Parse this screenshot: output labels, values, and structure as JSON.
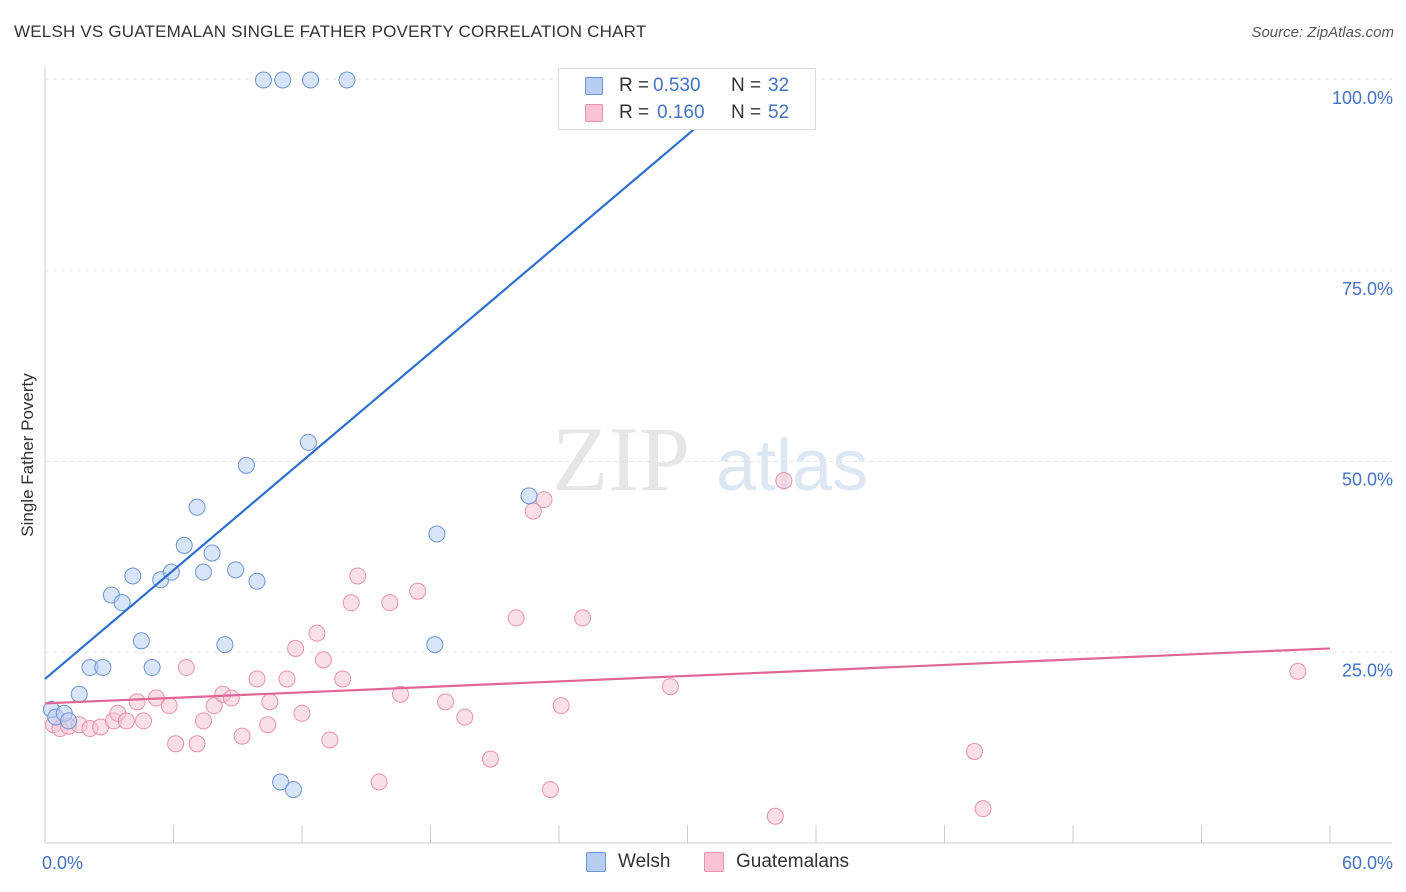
{
  "title": "WELSH VS GUATEMALAN SINGLE FATHER POVERTY CORRELATION CHART",
  "source": "Source: ZipAtlas.com",
  "watermark": {
    "part1": "ZIP",
    "part2": "atlas"
  },
  "legend_top": [
    {
      "r_label": "R =",
      "r_value": "0.530",
      "n_label": "N =",
      "n_value": "32"
    },
    {
      "r_label": "R =",
      "r_value": "0.160",
      "n_label": "N =",
      "n_value": "52"
    }
  ],
  "colors": {
    "welsh_fill": "#b8cef0",
    "welsh_stroke": "#6d94d6",
    "welsh_line": "#2f6fcc",
    "guat_fill": "#f8c4d4",
    "guat_stroke": "#e891b0",
    "guat_line": "#e06795",
    "axis_label": "#4472c4"
  },
  "chart_data": {
    "type": "scatter",
    "title": "WELSH VS GUATEMALAN SINGLE FATHER POVERTY CORRELATION CHART",
    "xlabel": "",
    "ylabel": "Single Father Poverty",
    "xlim": [
      0,
      60
    ],
    "ylim": [
      0,
      102
    ],
    "x_tick_labels": [
      "0.0%",
      "60.0%"
    ],
    "y_ticks": [
      25,
      50,
      75,
      100
    ],
    "y_tick_labels": [
      "25.0%",
      "50.0%",
      "75.0%",
      "100.0%"
    ],
    "grid": "horizontal dashed",
    "legend_placement": "top-center and bottom",
    "series": [
      {
        "name": "Welsh",
        "r": 0.53,
        "n": 32,
        "trend": {
          "x": [
            0,
            30.5
          ],
          "y": [
            21.5,
            94
          ]
        },
        "points": [
          [
            0.3,
            17.5
          ],
          [
            0.5,
            16.5
          ],
          [
            0.9,
            17.0
          ],
          [
            1.6,
            19.5
          ],
          [
            2.1,
            23.0
          ],
          [
            2.7,
            23.0
          ],
          [
            3.1,
            32.5
          ],
          [
            3.6,
            31.5
          ],
          [
            4.1,
            35.0
          ],
          [
            4.5,
            26.5
          ],
          [
            5.0,
            23.0
          ],
          [
            5.4,
            34.5
          ],
          [
            5.9,
            35.5
          ],
          [
            6.5,
            39.0
          ],
          [
            7.1,
            44.0
          ],
          [
            7.4,
            35.5
          ],
          [
            7.8,
            38.0
          ],
          [
            8.4,
            26.0
          ],
          [
            8.9,
            35.8
          ],
          [
            9.4,
            49.5
          ],
          [
            9.9,
            34.3
          ],
          [
            10.2,
            100.0
          ],
          [
            11.1,
            100.0
          ],
          [
            12.4,
            100.0
          ],
          [
            14.1,
            100.0
          ],
          [
            12.3,
            52.5
          ],
          [
            11.0,
            8.0
          ],
          [
            11.6,
            7.0
          ],
          [
            18.3,
            40.5
          ],
          [
            18.2,
            26.0
          ],
          [
            22.6,
            45.5
          ],
          [
            1.1,
            16.0
          ]
        ]
      },
      {
        "name": "Guatemalans",
        "r": 0.16,
        "n": 52,
        "trend": {
          "x": [
            0,
            60
          ],
          "y": [
            18.3,
            25.5
          ]
        },
        "points": [
          [
            0.4,
            15.5
          ],
          [
            0.7,
            15.0
          ],
          [
            1.1,
            15.3
          ],
          [
            1.6,
            15.5
          ],
          [
            2.1,
            15.0
          ],
          [
            2.6,
            15.2
          ],
          [
            3.2,
            16.0
          ],
          [
            3.4,
            17.0
          ],
          [
            3.8,
            16.0
          ],
          [
            4.3,
            18.5
          ],
          [
            4.6,
            16.0
          ],
          [
            5.2,
            19.0
          ],
          [
            5.8,
            18.0
          ],
          [
            6.1,
            13.0
          ],
          [
            6.6,
            23.0
          ],
          [
            7.1,
            13.0
          ],
          [
            7.4,
            16.0
          ],
          [
            7.9,
            18.0
          ],
          [
            8.3,
            19.5
          ],
          [
            8.7,
            19.0
          ],
          [
            9.2,
            14.0
          ],
          [
            9.9,
            21.5
          ],
          [
            10.4,
            15.5
          ],
          [
            10.5,
            18.5
          ],
          [
            11.3,
            21.5
          ],
          [
            11.7,
            25.5
          ],
          [
            12.0,
            17.0
          ],
          [
            12.7,
            27.5
          ],
          [
            13.0,
            24.0
          ],
          [
            13.3,
            13.5
          ],
          [
            13.9,
            21.5
          ],
          [
            14.3,
            31.5
          ],
          [
            14.6,
            35.0
          ],
          [
            15.6,
            8.0
          ],
          [
            16.1,
            31.5
          ],
          [
            16.6,
            19.5
          ],
          [
            17.4,
            33.0
          ],
          [
            18.7,
            18.5
          ],
          [
            19.6,
            16.5
          ],
          [
            20.8,
            11.0
          ],
          [
            22.0,
            29.5
          ],
          [
            22.8,
            43.5
          ],
          [
            23.3,
            45.0
          ],
          [
            23.6,
            7.0
          ],
          [
            24.1,
            18.0
          ],
          [
            25.1,
            29.5
          ],
          [
            29.2,
            20.5
          ],
          [
            34.1,
            3.5
          ],
          [
            34.5,
            47.5
          ],
          [
            43.4,
            12.0
          ],
          [
            43.8,
            4.5
          ],
          [
            58.5,
            22.5
          ]
        ]
      }
    ]
  },
  "bottom_legend": [
    "Welsh",
    "Guatemalans"
  ]
}
